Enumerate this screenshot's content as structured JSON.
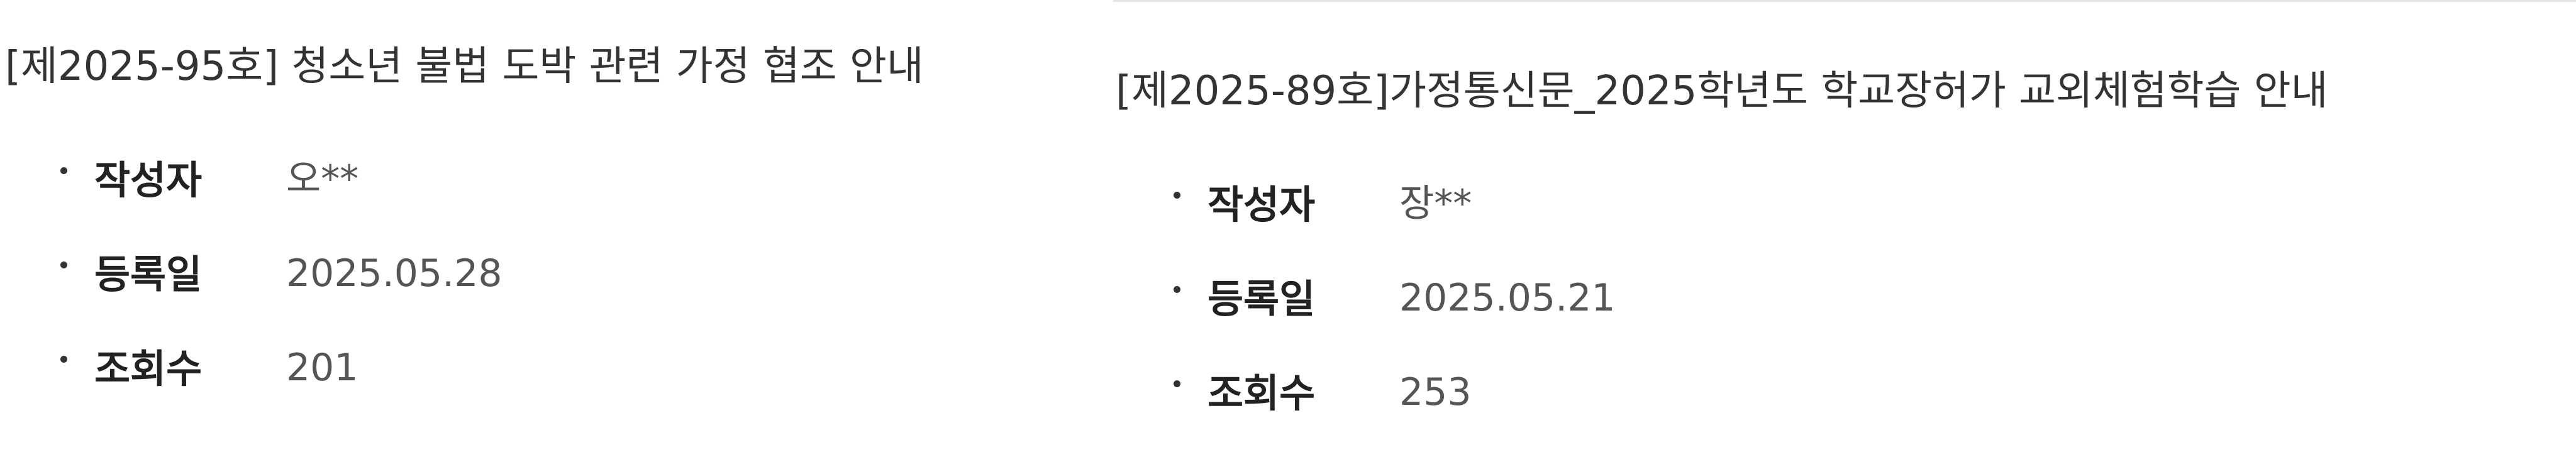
{
  "posts": [
    {
      "title": "[제2025-95호] 청소년 불법 도박 관련 가정 협조 안내",
      "meta": {
        "author_label": "작성자",
        "author_value": "오**",
        "date_label": "등록일",
        "date_value": "2025.05.28",
        "views_label": "조회수",
        "views_value": "201"
      }
    },
    {
      "title": "[제2025-89호]가정통신문_2025학년도 학교장허가 교외체험학습 안내",
      "meta": {
        "author_label": "작성자",
        "author_value": "장**",
        "date_label": "등록일",
        "date_value": "2025.05.21",
        "views_label": "조회수",
        "views_value": "253"
      }
    }
  ]
}
